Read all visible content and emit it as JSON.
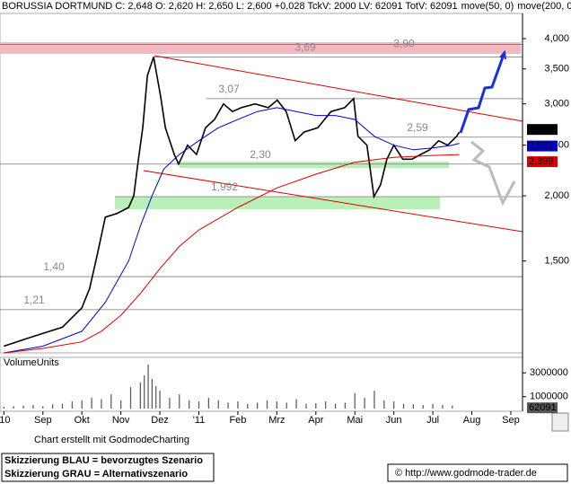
{
  "chart_data": {
    "type": "line",
    "title": "BORUSSIA DORTMUND C: 2,648 O: 2,620 H: 2,650 L: 2,600 +0,028 TckV: 2000 LV: 62091 TotV: 62091",
    "log_scale": true,
    "xlim": [
      -0.1,
      13.3
    ],
    "xticks": [
      {
        "value": 0,
        "label": "'10"
      },
      {
        "value": 1,
        "label": "Sep"
      },
      {
        "value": 2,
        "label": "Okt"
      },
      {
        "value": 3,
        "label": "Nov"
      },
      {
        "value": 4,
        "label": "Dez"
      },
      {
        "value": 5,
        "label": "'11"
      },
      {
        "value": 6,
        "label": "Feb"
      },
      {
        "value": 7,
        "label": "Mrz"
      },
      {
        "value": 8,
        "label": "Apr"
      },
      {
        "value": 9,
        "label": "Mai"
      },
      {
        "value": 10,
        "label": "Jun"
      },
      {
        "value": 11,
        "label": "Jul"
      },
      {
        "value": 12,
        "label": "Aug"
      },
      {
        "value": 13,
        "label": "Sep"
      }
    ],
    "ylim": [
      1.0,
      4.47
    ],
    "yticks": [
      {
        "value": 1.5,
        "label": "1,500"
      },
      {
        "value": 2,
        "label": "2,000"
      },
      {
        "value": 2.5,
        "label": "2,500"
      },
      {
        "value": 3,
        "label": "3,000"
      },
      {
        "value": 3.5,
        "label": "3,500"
      },
      {
        "value": 4,
        "label": "4,000"
      }
    ],
    "levels": [
      {
        "value": 3.9,
        "label": "3,90"
      },
      {
        "value": 3.69,
        "label": "3,69"
      },
      {
        "value": 3.07,
        "label": "3,07"
      },
      {
        "value": 2.59,
        "label": "2,59"
      },
      {
        "value": 2.3,
        "label": "2,30"
      },
      {
        "value": 1.992,
        "label": "1,992"
      },
      {
        "value": 1.4,
        "label": "1,40"
      },
      {
        "value": 1.21,
        "label": "1,21"
      }
    ],
    "series": [
      {
        "color": "#000000",
        "last_value_label": "2,648",
        "x": [
          0,
          0.5,
          1.0,
          1.5,
          2.0,
          2.2,
          2.4,
          2.6,
          2.9,
          3.2,
          3.33,
          3.45,
          3.56,
          3.68,
          3.84,
          4.02,
          4.14,
          4.37,
          4.48,
          4.71,
          4.94,
          5.17,
          5.4,
          5.63,
          5.86,
          6.09,
          6.44,
          6.78,
          7.01,
          7.24,
          7.47,
          7.7,
          8.05,
          8.39,
          8.74,
          8.97,
          9.08,
          9.31,
          9.49,
          9.66,
          9.82,
          10.0,
          10.23,
          10.46,
          10.69,
          10.92,
          11.15,
          11.38,
          11.61,
          11.68
        ],
        "values": [
          1.03,
          1.06,
          1.09,
          1.12,
          1.22,
          1.33,
          1.55,
          1.82,
          1.85,
          1.9,
          2.0,
          2.35,
          2.7,
          3.4,
          3.69,
          3.1,
          2.7,
          2.4,
          2.3,
          2.5,
          2.4,
          2.7,
          2.8,
          3.0,
          2.9,
          2.95,
          3.0,
          2.95,
          3.05,
          2.9,
          2.55,
          2.65,
          2.7,
          2.9,
          2.95,
          3.07,
          2.6,
          2.5,
          1.992,
          2.1,
          2.35,
          2.5,
          2.35,
          2.35,
          2.4,
          2.45,
          2.55,
          2.5,
          2.6,
          2.648
        ]
      },
      {
        "name": "move(50, 0)",
        "color": "#0000cc",
        "last_value_label": "2,521",
        "x": [
          0,
          1,
          2,
          2.6,
          3.2,
          3.5,
          3.8,
          4.1,
          4.5,
          5,
          5.5,
          6,
          6.5,
          7,
          7.5,
          8,
          8.5,
          9,
          9.5,
          10,
          10.5,
          11,
          11.5,
          11.68
        ],
        "values": [
          1.0,
          1.03,
          1.1,
          1.25,
          1.5,
          1.75,
          2.0,
          2.25,
          2.4,
          2.55,
          2.7,
          2.8,
          2.9,
          2.95,
          2.9,
          2.85,
          2.85,
          2.8,
          2.6,
          2.5,
          2.45,
          2.47,
          2.5,
          2.521
        ]
      },
      {
        "name": "move(200, 0",
        "color": "#dd0000",
        "last_value_label": "2,399",
        "x": [
          0,
          1,
          2,
          2.5,
          3,
          3.5,
          4,
          4.5,
          5,
          6,
          7,
          8,
          9,
          10,
          11,
          11.68
        ],
        "values": [
          1.0,
          1.02,
          1.05,
          1.1,
          1.18,
          1.3,
          1.45,
          1.6,
          1.72,
          1.9,
          2.07,
          2.2,
          2.32,
          2.37,
          2.39,
          2.399
        ]
      }
    ],
    "volume": {
      "label": "VolumeUnits",
      "color": "#555555",
      "ylim": [
        0,
        4300000
      ],
      "yticks": [
        1000000,
        3000000
      ],
      "last_value_label": "62091",
      "last_value": 62091,
      "x": [
        0,
        0.25,
        0.5,
        0.75,
        1,
        1.25,
        1.5,
        1.75,
        2,
        2.25,
        2.5,
        2.75,
        3,
        3.25,
        3.5,
        3.6,
        3.7,
        3.8,
        3.9,
        4,
        4.25,
        4.5,
        4.75,
        5,
        5.25,
        5.5,
        5.75,
        6,
        6.25,
        6.5,
        6.75,
        7,
        7.25,
        7.5,
        7.75,
        8,
        8.25,
        8.5,
        8.75,
        9,
        9.25,
        9.5,
        9.75,
        10,
        10.25,
        10.5,
        10.75,
        11,
        11.25,
        11.5
      ],
      "values": [
        150000,
        200000,
        250000,
        300000,
        200000,
        350000,
        400000,
        600000,
        700000,
        900000,
        800000,
        1200000,
        700000,
        1800000,
        2200000,
        2800000,
        3700000,
        2500000,
        1900000,
        1500000,
        900000,
        1200000,
        700000,
        600000,
        900000,
        700000,
        500000,
        600000,
        400000,
        500000,
        700000,
        600000,
        500000,
        800000,
        400000,
        450000,
        600000,
        400000,
        500000,
        1300000,
        900000,
        1500000,
        700000,
        600000,
        400000,
        350000,
        300000,
        400000,
        300000,
        250000
      ]
    },
    "footer": "Chart erstellt mit GodmodeCharting",
    "notes": [
      "Skizzierung BLAU = bevorzugtes Szenario",
      "Skizzierung GRAU = Alternativszenario"
    ],
    "source": "© http://www.godmode-trader.de"
  }
}
